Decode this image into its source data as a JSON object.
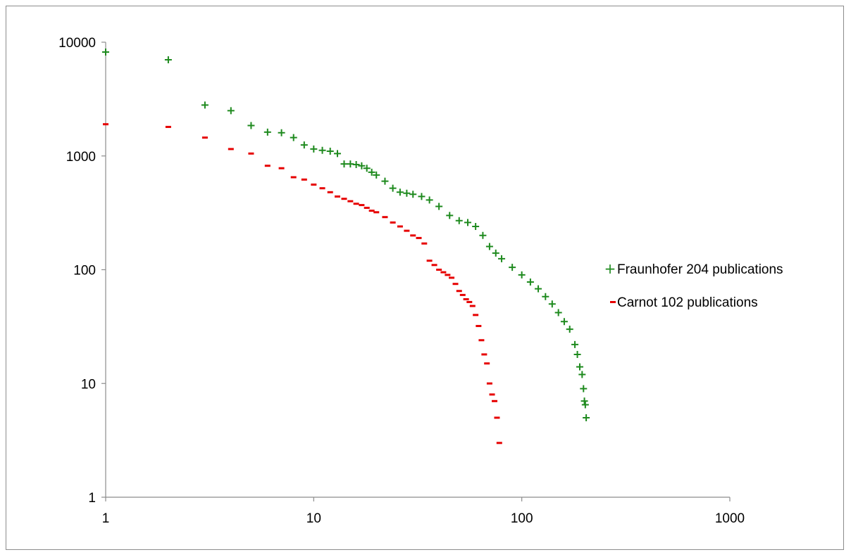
{
  "chart_data": {
    "type": "scatter",
    "title": "",
    "xlabel": "",
    "ylabel": "",
    "x_scale": "log",
    "y_scale": "log",
    "xlim": [
      1,
      1000
    ],
    "ylim": [
      1,
      10000
    ],
    "x_ticks": [
      "1",
      "10",
      "100",
      "1000"
    ],
    "y_ticks": [
      "1",
      "10",
      "100",
      "1000",
      "10000"
    ],
    "grid": false,
    "legend_position": "right",
    "series": [
      {
        "name": "Fraunhofer 204 publications",
        "marker": "+",
        "color": "#1e8a1e",
        "x": [
          1,
          2,
          3,
          4,
          5,
          6,
          7,
          8,
          9,
          10,
          11,
          12,
          13,
          14,
          15,
          16,
          17,
          18,
          19,
          20,
          22,
          24,
          26,
          28,
          30,
          33,
          36,
          40,
          45,
          50,
          55,
          60,
          65,
          70,
          75,
          80,
          90,
          100,
          110,
          120,
          130,
          140,
          150,
          160,
          170,
          180,
          185,
          190,
          195,
          198,
          200,
          202,
          204
        ],
        "y": [
          8200,
          7000,
          2800,
          2500,
          1850,
          1620,
          1600,
          1450,
          1250,
          1150,
          1120,
          1100,
          1050,
          850,
          850,
          840,
          820,
          780,
          720,
          680,
          600,
          520,
          480,
          470,
          460,
          440,
          410,
          360,
          300,
          270,
          260,
          240,
          200,
          160,
          140,
          125,
          105,
          90,
          78,
          68,
          58,
          50,
          42,
          35,
          30,
          22,
          18,
          14,
          12,
          9,
          7,
          6.5,
          5
        ]
      },
      {
        "name": "Carnot 102 publications",
        "marker": "-",
        "color": "#e60000",
        "x": [
          1,
          2,
          3,
          4,
          5,
          6,
          7,
          8,
          9,
          10,
          11,
          12,
          13,
          14,
          15,
          16,
          17,
          18,
          19,
          20,
          22,
          24,
          26,
          28,
          30,
          32,
          34,
          36,
          38,
          40,
          42,
          44,
          46,
          48,
          50,
          52,
          54,
          56,
          58,
          60,
          62,
          64,
          66,
          68,
          70,
          72,
          74,
          76,
          78
        ],
        "y": [
          1900,
          1800,
          1450,
          1150,
          1050,
          820,
          780,
          650,
          620,
          560,
          520,
          480,
          440,
          420,
          400,
          380,
          370,
          350,
          330,
          320,
          290,
          260,
          240,
          220,
          200,
          190,
          170,
          120,
          110,
          100,
          95,
          90,
          85,
          75,
          65,
          60,
          55,
          52,
          48,
          40,
          32,
          24,
          18,
          15,
          10,
          8,
          7,
          5,
          3
        ]
      }
    ]
  }
}
